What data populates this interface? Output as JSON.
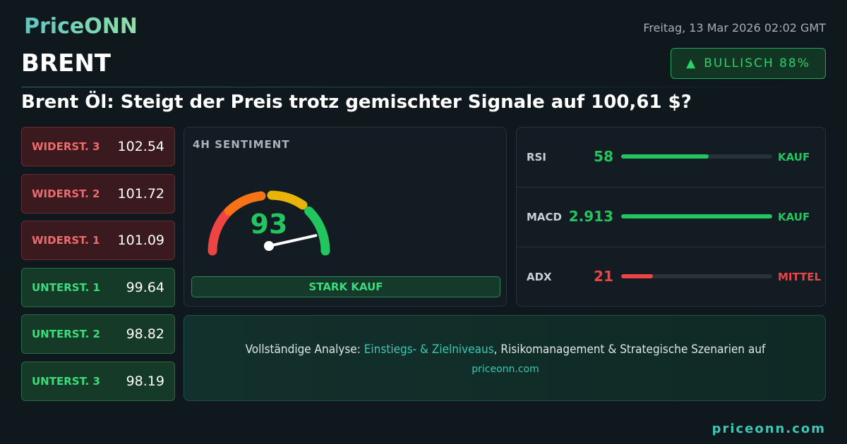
{
  "header": {
    "logo": "PriceONN",
    "date": "Freitag, 13 Mar 2026 02:02 GMT",
    "symbol": "BRENT",
    "badge": "BULLISCH 88%"
  },
  "headline": "Brent Öl: Steigt der Preis trotz gemischter Signale auf 100,61 $?",
  "levels": [
    {
      "label": "WIDERST. 3",
      "value": "102.54",
      "kind": "resistance"
    },
    {
      "label": "WIDERST. 2",
      "value": "101.72",
      "kind": "resistance"
    },
    {
      "label": "WIDERST. 1",
      "value": "101.09",
      "kind": "resistance"
    },
    {
      "label": "UNTERST. 1",
      "value": "99.64",
      "kind": "support"
    },
    {
      "label": "UNTERST. 2",
      "value": "98.82",
      "kind": "support"
    },
    {
      "label": "UNTERST. 3",
      "value": "98.19",
      "kind": "support"
    }
  ],
  "sentiment": {
    "title": "4H SENTIMENT",
    "value": 93,
    "signal": "STARK KAUF"
  },
  "indicators": [
    {
      "name": "RSI",
      "value": 58,
      "signal": "KAUF",
      "color": "#22c55e"
    },
    {
      "name": "MACD",
      "value": 2.913,
      "signal": "KAUF",
      "color": "#22c55e"
    },
    {
      "name": "ADX",
      "value": 21,
      "signal": "MITTEL",
      "color": "#ef4444"
    }
  ],
  "cta": {
    "lead": "Vollständige Analyse: ",
    "highlight": "Einstiegs- & Zielniveaus",
    "rest": ", Risikomanagement & Strategische Szenarien auf",
    "link": "priceonn.com"
  },
  "footer": "priceonn.com"
}
